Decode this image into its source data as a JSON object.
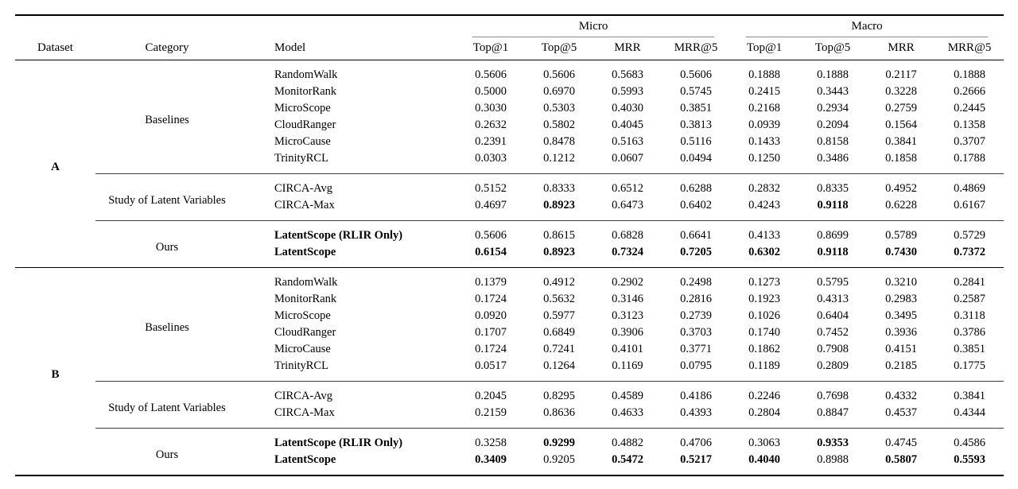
{
  "colors": {
    "text": "#000000",
    "main_rule": "#000000",
    "group_underline_rule": "#8a8a8a",
    "section_rule": "#3d3d3d",
    "background": "#ffffff"
  },
  "table": {
    "header": {
      "dataset": "Dataset",
      "category": "Category",
      "model": "Model",
      "groups": [
        {
          "label": "Micro",
          "columns": [
            "Top@1",
            "Top@5",
            "MRR",
            "MRR@5"
          ]
        },
        {
          "label": "Macro",
          "columns": [
            "Top@1",
            "Top@5",
            "MRR",
            "MRR@5"
          ]
        }
      ]
    },
    "datasets": [
      {
        "name": "A",
        "sections": [
          {
            "category": "Baselines",
            "rows": [
              {
                "model": "RandomWalk",
                "model_bold": false,
                "values": [
                  "0.5606",
                  "0.5606",
                  "0.5683",
                  "0.5606",
                  "0.1888",
                  "0.1888",
                  "0.2117",
                  "0.1888"
                ],
                "bold_values": []
              },
              {
                "model": "MonitorRank",
                "model_bold": false,
                "values": [
                  "0.5000",
                  "0.6970",
                  "0.5993",
                  "0.5745",
                  "0.2415",
                  "0.3443",
                  "0.3228",
                  "0.2666"
                ],
                "bold_values": []
              },
              {
                "model": "MicroScope",
                "model_bold": false,
                "values": [
                  "0.3030",
                  "0.5303",
                  "0.4030",
                  "0.3851",
                  "0.2168",
                  "0.2934",
                  "0.2759",
                  "0.2445"
                ],
                "bold_values": []
              },
              {
                "model": "CloudRanger",
                "model_bold": false,
                "values": [
                  "0.2632",
                  "0.5802",
                  "0.4045",
                  "0.3813",
                  "0.0939",
                  "0.2094",
                  "0.1564",
                  "0.1358"
                ],
                "bold_values": []
              },
              {
                "model": "MicroCause",
                "model_bold": false,
                "values": [
                  "0.2391",
                  "0.8478",
                  "0.5163",
                  "0.5116",
                  "0.1433",
                  "0.8158",
                  "0.3841",
                  "0.3707"
                ],
                "bold_values": []
              },
              {
                "model": "TrinityRCL",
                "model_bold": false,
                "values": [
                  "0.0303",
                  "0.1212",
                  "0.0607",
                  "0.0494",
                  "0.1250",
                  "0.3486",
                  "0.1858",
                  "0.1788"
                ],
                "bold_values": []
              }
            ]
          },
          {
            "category": "Study of Latent Variables",
            "rows": [
              {
                "model": "CIRCA-Avg",
                "model_bold": false,
                "values": [
                  "0.5152",
                  "0.8333",
                  "0.6512",
                  "0.6288",
                  "0.2832",
                  "0.8335",
                  "0.4952",
                  "0.4869"
                ],
                "bold_values": []
              },
              {
                "model": "CIRCA-Max",
                "model_bold": false,
                "values": [
                  "0.4697",
                  "0.8923",
                  "0.6473",
                  "0.6402",
                  "0.4243",
                  "0.9118",
                  "0.6228",
                  "0.6167"
                ],
                "bold_values": [
                  1,
                  5
                ]
              }
            ]
          },
          {
            "category": "Ours",
            "rows": [
              {
                "model": "LatentScope (RLIR Only)",
                "model_bold": true,
                "values": [
                  "0.5606",
                  "0.8615",
                  "0.6828",
                  "0.6641",
                  "0.4133",
                  "0.8699",
                  "0.5789",
                  "0.5729"
                ],
                "bold_values": []
              },
              {
                "model": "LatentScope",
                "model_bold": true,
                "values": [
                  "0.6154",
                  "0.8923",
                  "0.7324",
                  "0.7205",
                  "0.6302",
                  "0.9118",
                  "0.7430",
                  "0.7372"
                ],
                "bold_values": [
                  0,
                  1,
                  2,
                  3,
                  4,
                  5,
                  6,
                  7
                ]
              }
            ]
          }
        ]
      },
      {
        "name": "B",
        "sections": [
          {
            "category": "Baselines",
            "rows": [
              {
                "model": "RandomWalk",
                "model_bold": false,
                "values": [
                  "0.1379",
                  "0.4912",
                  "0.2902",
                  "0.2498",
                  "0.1273",
                  "0.5795",
                  "0.3210",
                  "0.2841"
                ],
                "bold_values": []
              },
              {
                "model": "MonitorRank",
                "model_bold": false,
                "values": [
                  "0.1724",
                  "0.5632",
                  "0.3146",
                  "0.2816",
                  "0.1923",
                  "0.4313",
                  "0.2983",
                  "0.2587"
                ],
                "bold_values": []
              },
              {
                "model": "MicroScope",
                "model_bold": false,
                "values": [
                  "0.0920",
                  "0.5977",
                  "0.3123",
                  "0.2739",
                  "0.1026",
                  "0.6404",
                  "0.3495",
                  "0.3118"
                ],
                "bold_values": []
              },
              {
                "model": "CloudRanger",
                "model_bold": false,
                "values": [
                  "0.1707",
                  "0.6849",
                  "0.3906",
                  "0.3703",
                  "0.1740",
                  "0.7452",
                  "0.3936",
                  "0.3786"
                ],
                "bold_values": []
              },
              {
                "model": "MicroCause",
                "model_bold": false,
                "values": [
                  "0.1724",
                  "0.7241",
                  "0.4101",
                  "0.3771",
                  "0.1862",
                  "0.7908",
                  "0.4151",
                  "0.3851"
                ],
                "bold_values": []
              },
              {
                "model": "TrinityRCL",
                "model_bold": false,
                "values": [
                  "0.0517",
                  "0.1264",
                  "0.1169",
                  "0.0795",
                  "0.1189",
                  "0.2809",
                  "0.2185",
                  "0.1775"
                ],
                "bold_values": []
              }
            ]
          },
          {
            "category": "Study of Latent Variables",
            "rows": [
              {
                "model": "CIRCA-Avg",
                "model_bold": false,
                "values": [
                  "0.2045",
                  "0.8295",
                  "0.4589",
                  "0.4186",
                  "0.2246",
                  "0.7698",
                  "0.4332",
                  "0.3841"
                ],
                "bold_values": []
              },
              {
                "model": "CIRCA-Max",
                "model_bold": false,
                "values": [
                  "0.2159",
                  "0.8636",
                  "0.4633",
                  "0.4393",
                  "0.2804",
                  "0.8847",
                  "0.4537",
                  "0.4344"
                ],
                "bold_values": []
              }
            ]
          },
          {
            "category": "Ours",
            "rows": [
              {
                "model": "LatentScope (RLIR Only)",
                "model_bold": true,
                "values": [
                  "0.3258",
                  "0.9299",
                  "0.4882",
                  "0.4706",
                  "0.3063",
                  "0.9353",
                  "0.4745",
                  "0.4586"
                ],
                "bold_values": [
                  1,
                  5
                ]
              },
              {
                "model": "LatentScope",
                "model_bold": true,
                "values": [
                  "0.3409",
                  "0.9205",
                  "0.5472",
                  "0.5217",
                  "0.4040",
                  "0.8988",
                  "0.5807",
                  "0.5593"
                ],
                "bold_values": [
                  0,
                  2,
                  3,
                  4,
                  6,
                  7
                ]
              }
            ]
          }
        ]
      }
    ]
  }
}
